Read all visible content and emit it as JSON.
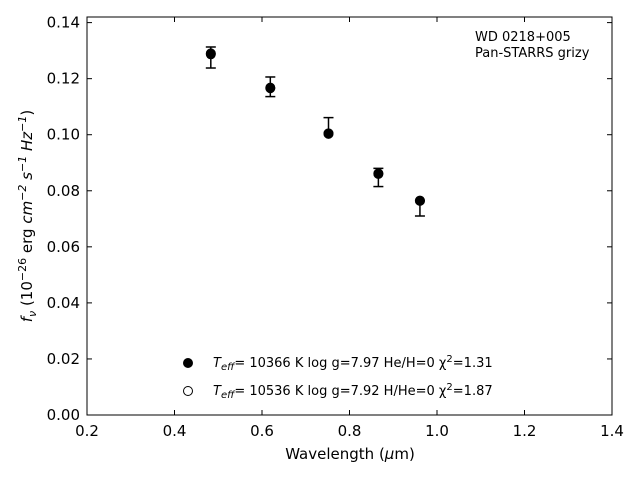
{
  "chart_data": {
    "type": "scatter",
    "xlabel": "Wavelength (μm)",
    "ylabel": "f_ν (10^-26 erg cm^-2 s^-1 Hz^-1)",
    "xlim": [
      0.2,
      1.4
    ],
    "ylim": [
      0.0,
      0.142
    ],
    "xticks": [
      "0.2",
      "0.4",
      "0.6",
      "0.8",
      "1.0",
      "1.2",
      "1.4"
    ],
    "yticks": [
      "0.00",
      "0.02",
      "0.04",
      "0.06",
      "0.08",
      "0.10",
      "0.12",
      "0.14"
    ],
    "grid": false,
    "annotation": [
      "WD 0218+005",
      "Pan-STARRS grizy"
    ],
    "observed": {
      "x": [
        0.483,
        0.619,
        0.752,
        0.866,
        0.961
      ],
      "y": [
        0.1273,
        0.1169,
        0.1028,
        0.085,
        0.074
      ],
      "yerr_low": [
        0.0035,
        0.0033,
        0.0023,
        0.0035,
        0.003
      ],
      "yerr_high": [
        0.004,
        0.0037,
        0.0033,
        0.003,
        0.0025
      ]
    },
    "series": [
      {
        "marker": "filled-circle",
        "label_parts": [
          "T",
          "eff",
          "= 10366 K  log g=7.97  He/H=0  χ",
          "2",
          "=1.31"
        ],
        "x": [
          0.483,
          0.619,
          0.752,
          0.866,
          0.961
        ],
        "y": [
          0.1287,
          0.1166,
          0.1003,
          0.086,
          0.0764
        ]
      },
      {
        "marker": "open-circle",
        "label_parts": [
          "T",
          "eff",
          "= 10536 K  log g=7.92  H/He=0  χ",
          "2",
          "=1.87"
        ],
        "x": [
          0.483,
          0.619,
          0.752,
          0.866,
          0.961
        ],
        "y": [
          0.129,
          0.1168,
          0.1005,
          0.0862,
          0.0765
        ]
      }
    ],
    "legend_position": "lower-center"
  }
}
